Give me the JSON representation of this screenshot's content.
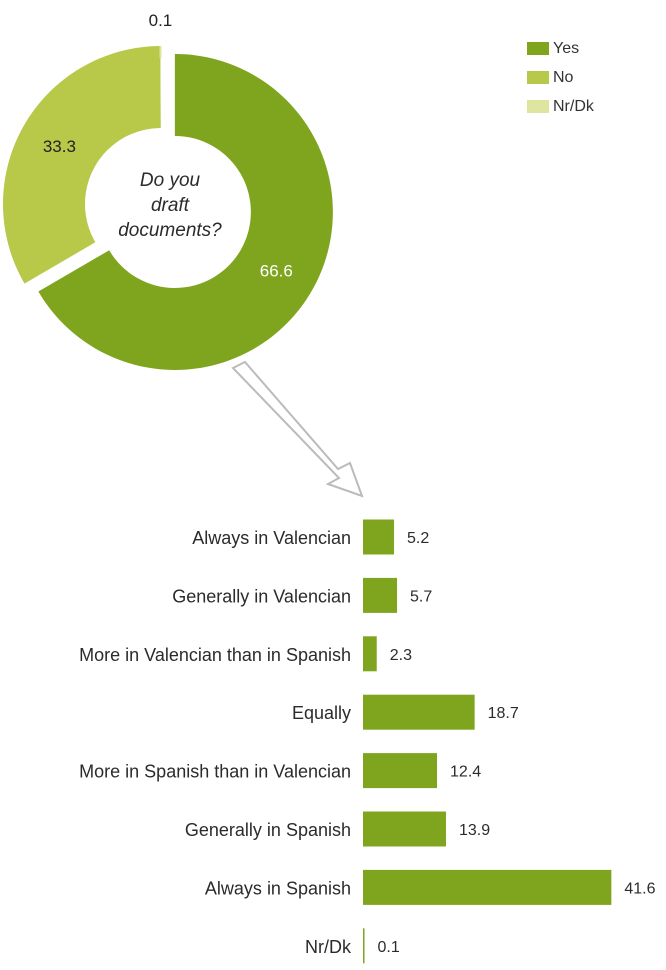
{
  "colors": {
    "yes": "#7fa51e",
    "no": "#b8c94a",
    "nrdk": "#dde59f",
    "arrow_stroke": "#bbbbbb",
    "label_dark": "#222222",
    "label_light": "#ffffff"
  },
  "chart_data": [
    {
      "type": "pie",
      "variant": "donut",
      "center_label": "Do you draft documents?",
      "center_label_lines": [
        "Do you",
        "draft",
        "documents?"
      ],
      "slices": [
        {
          "name": "Yes",
          "value": 66.6,
          "value_label": "66.6",
          "color": "#7fa51e"
        },
        {
          "name": "No",
          "value": 33.3,
          "value_label": "33.3",
          "color": "#b8c94a"
        },
        {
          "name": "Nr/Dk",
          "value": 0.1,
          "value_label": "0.1",
          "color": "#dde59f"
        }
      ],
      "legend": [
        "Yes",
        "No",
        "Nr/Dk"
      ],
      "legend_position": "top-right",
      "exploded_slice": "Yes"
    },
    {
      "type": "bar",
      "orientation": "horizontal",
      "categories": [
        "Always in Valencian",
        "Generally in Valencian",
        "More in Valencian than in Spanish",
        "Equally",
        "More in Spanish than in Valencian",
        "Generally in Spanish",
        "Always in Spanish",
        "Nr/Dk"
      ],
      "values": [
        5.2,
        5.7,
        2.3,
        18.7,
        12.4,
        13.9,
        41.6,
        0.1
      ],
      "value_labels": [
        "5.2",
        "5.7",
        "2.3",
        "18.7",
        "12.4",
        "13.9",
        "41.6",
        "0.1"
      ],
      "color": "#7fa51e",
      "grid": false,
      "axis_line": true
    }
  ]
}
